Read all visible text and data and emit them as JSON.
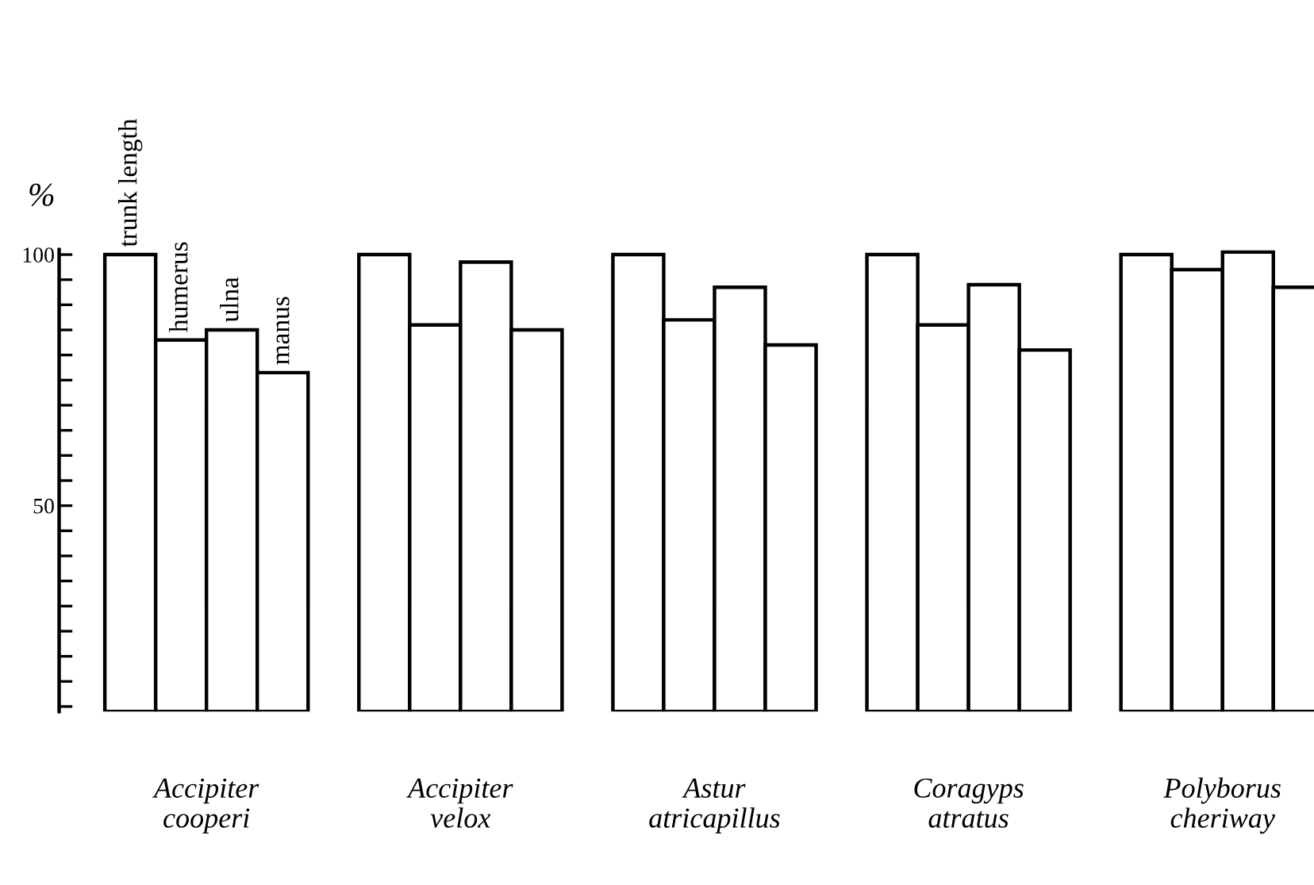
{
  "chart_data": {
    "type": "bar",
    "ylabel": "%",
    "categories": [
      "Accipiter\ncooperi",
      "Accipiter\nvelox",
      "Astur\natricapillus",
      "Coragyps\natratus",
      "Polyborus\ncheriway"
    ],
    "series": [
      {
        "name": "trunk length",
        "color": "#000000",
        "values": [
          100,
          100,
          100,
          100,
          100
        ]
      },
      {
        "name": "humerus",
        "color": "#000000",
        "values": [
          83,
          86,
          87,
          86,
          97
        ]
      },
      {
        "name": "ulna",
        "color": "#000000",
        "values": [
          85,
          98.5,
          93.5,
          94,
          100.5
        ]
      },
      {
        "name": "manus",
        "color": "#000000",
        "values": [
          76.5,
          85,
          82,
          81,
          93.5
        ]
      }
    ],
    "ylim": [
      9,
      101
    ],
    "yticks": [
      {
        "value": 10,
        "label": null
      },
      {
        "value": 15,
        "label": null
      },
      {
        "value": 20,
        "label": null
      },
      {
        "value": 25,
        "label": null
      },
      {
        "value": 30,
        "label": null
      },
      {
        "value": 35,
        "label": null
      },
      {
        "value": 40,
        "label": null
      },
      {
        "value": 45,
        "label": null
      },
      50,
      {
        "value": 55,
        "label": null
      },
      {
        "value": 60,
        "label": null
      },
      {
        "value": 65,
        "label": null
      },
      {
        "value": 70,
        "label": null
      },
      {
        "value": 75,
        "label": null
      },
      {
        "value": 80,
        "label": null
      },
      {
        "value": 85,
        "label": null
      },
      {
        "value": 90,
        "label": null
      },
      {
        "value": 95,
        "label": null
      },
      100
    ],
    "tick_labels": "y",
    "grid": false,
    "legend": false
  }
}
